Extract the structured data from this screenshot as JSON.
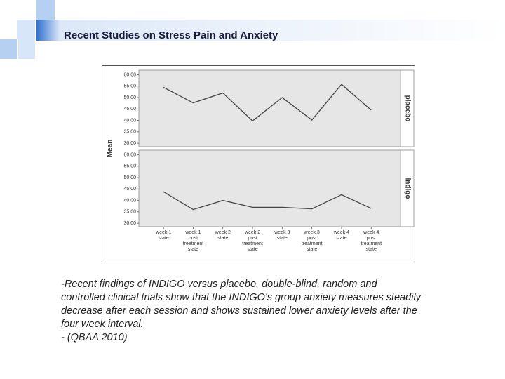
{
  "slide_title": "Recent Studies on Stress Pain and Anxiety",
  "chart_data": [
    {
      "type": "line",
      "ylabel": "Mean",
      "series": [
        {
          "name": "placebo",
          "color": "#444444",
          "values": [
            54.5,
            47.7,
            52.0,
            39.8,
            50.0,
            40.2,
            55.8,
            44.5
          ]
        }
      ],
      "ylim": [
        28.5,
        62
      ],
      "yticks": [
        {
          "value": 30,
          "label": "30.00"
        },
        {
          "value": 35,
          "label": "35.00"
        },
        {
          "value": 40,
          "label": "40.00"
        },
        {
          "value": 45,
          "label": "45.00"
        },
        {
          "value": 50,
          "label": "50.00"
        },
        {
          "value": 55,
          "label": "55.00"
        },
        {
          "value": 60,
          "label": "60.00"
        }
      ]
    },
    {
      "type": "line",
      "categories": [
        [
          "week 1",
          "state"
        ],
        [
          "week 1",
          "post",
          "treatment",
          "state"
        ],
        [
          "week 2",
          "state"
        ],
        [
          "week 2",
          "post",
          "treatment",
          "state"
        ],
        [
          "week 3",
          "state"
        ],
        [
          "week 3",
          "post",
          "treatment",
          "state"
        ],
        [
          "week 4",
          "state"
        ],
        [
          "week 4",
          "post",
          "treatment",
          "state"
        ]
      ],
      "series": [
        {
          "name": "indigo",
          "color": "#444444",
          "values": [
            43.8,
            36.0,
            40.0,
            37.0,
            37.0,
            36.3,
            42.5,
            36.5
          ]
        }
      ],
      "ylim": [
        28.5,
        62
      ],
      "yticks": [
        {
          "value": 30,
          "label": "30.00"
        },
        {
          "value": 35,
          "label": "35.00"
        },
        {
          "value": 40,
          "label": "40.00"
        },
        {
          "value": 45,
          "label": "45.00"
        },
        {
          "value": 50,
          "label": "50.00"
        },
        {
          "value": 55,
          "label": "55.00"
        },
        {
          "value": 60,
          "label": "60.00"
        }
      ]
    }
  ],
  "caption": [
    "-Recent findings of INDIGO versus placebo, double-blind, random and",
    "controlled clinical trials show that the INDIGO's group anxiety measures steadily",
    "decrease after each session and shows sustained lower anxiety levels after the",
    "four week interval.",
    "- (QBAA 2010)"
  ]
}
